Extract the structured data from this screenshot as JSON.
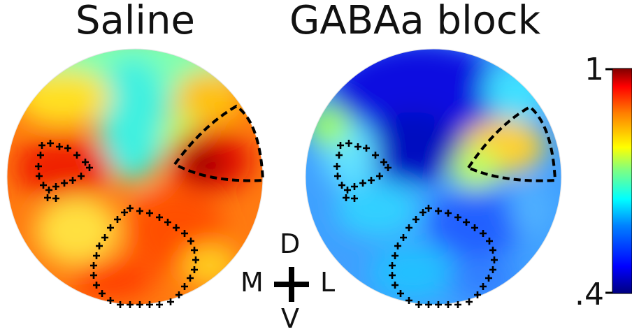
{
  "titles": {
    "left": "Saline",
    "right": "GABAa block"
  },
  "orientation": {
    "dorsal": "D",
    "medial": "M",
    "lateral": "L",
    "ventral": "V"
  },
  "colorbar": {
    "max_label": "1",
    "min_label": ".4",
    "colormap": "jet",
    "stops": [
      "#00007f",
      "#0000ff",
      "#0080ff",
      "#00ffff",
      "#80ff80",
      "#ffff00",
      "#ff8000",
      "#ff0000",
      "#7f0000"
    ]
  },
  "roi_markers": {
    "dashed_region": "black dashed outline",
    "plus_region": "black + markers"
  }
}
